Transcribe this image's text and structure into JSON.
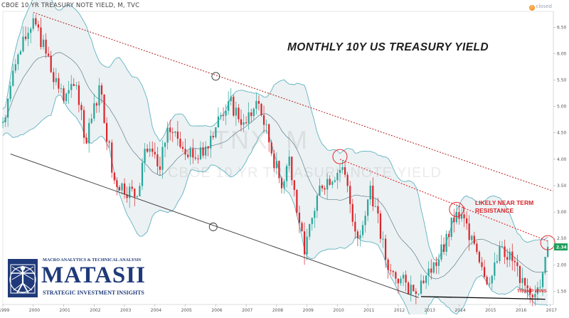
{
  "header": {
    "symbol_line": "CBOE 10 YR TREASURY NOTE YIELD, M, TVC",
    "status": "closed"
  },
  "watermark": {
    "ticker": "TNX, M",
    "name": "CBOE 10 YR TREASURY NOTE YIELD"
  },
  "annotations": {
    "resistance": "LIKELY NEAR TERM RESISTANCE",
    "trump": "TRUMP WINS"
  },
  "logo": {
    "top_line": "MACRO ANALYTICS & TECHNICAL ANALYSIS",
    "name": "MATASII",
    "tagline": "STRATEGIC INVESTMENT INSIGHTS"
  },
  "colors": {
    "up": "#26a69a",
    "down": "#d8262b",
    "band_stroke": "#5fb3c1",
    "band_fill": "#e9eef1",
    "basis": "#5f7f8c",
    "upper_channel": "#b5322f",
    "lower_channel": "#333333",
    "last_price_tag": "#1f9e5a"
  },
  "chart_data": {
    "type": "candlestick",
    "title": "MONTHLY 10Y US TREASURY YIELD",
    "x_range": [
      "1999-01",
      "2017-02"
    ],
    "ylim": [
      1.25,
      6.8
    ],
    "y_ticks": [
      "1.50",
      "2.00",
      "2.50",
      "3.00",
      "3.50",
      "4.00",
      "4.50",
      "5.00",
      "5.50",
      "6.00",
      "6.50"
    ],
    "x_ticks": [
      "1999",
      "2000",
      "2001",
      "2002",
      "2003",
      "2004",
      "2005",
      "2006",
      "2007",
      "2008",
      "2009",
      "2010",
      "2011",
      "2012",
      "2013",
      "2014",
      "2015",
      "2016",
      "2017"
    ],
    "last_value": "2.34",
    "close_anchors": [
      {
        "date": "1999-01",
        "value": 4.7
      },
      {
        "date": "1999-06",
        "value": 5.8
      },
      {
        "date": "2000-01",
        "value": 6.67
      },
      {
        "date": "2000-06",
        "value": 6.0
      },
      {
        "date": "2001-01",
        "value": 5.1
      },
      {
        "date": "2001-06",
        "value": 5.4
      },
      {
        "date": "2001-10",
        "value": 4.3
      },
      {
        "date": "2002-03",
        "value": 5.4
      },
      {
        "date": "2002-09",
        "value": 3.6
      },
      {
        "date": "2003-06",
        "value": 3.3
      },
      {
        "date": "2003-09",
        "value": 4.2
      },
      {
        "date": "2004-03",
        "value": 3.8
      },
      {
        "date": "2004-06",
        "value": 4.6
      },
      {
        "date": "2005-06",
        "value": 4.0
      },
      {
        "date": "2006-06",
        "value": 5.1
      },
      {
        "date": "2006-12",
        "value": 4.7
      },
      {
        "date": "2007-06",
        "value": 5.05
      },
      {
        "date": "2008-03",
        "value": 3.45
      },
      {
        "date": "2008-06",
        "value": 4.05
      },
      {
        "date": "2008-12",
        "value": 2.2
      },
      {
        "date": "2009-06",
        "value": 3.5
      },
      {
        "date": "2010-03",
        "value": 3.85
      },
      {
        "date": "2010-09",
        "value": 2.5
      },
      {
        "date": "2011-02",
        "value": 3.5
      },
      {
        "date": "2011-09",
        "value": 1.9
      },
      {
        "date": "2012-07",
        "value": 1.5
      },
      {
        "date": "2013-05",
        "value": 2.1
      },
      {
        "date": "2013-12",
        "value": 3.0
      },
      {
        "date": "2014-06",
        "value": 2.55
      },
      {
        "date": "2015-01",
        "value": 1.65
      },
      {
        "date": "2015-06",
        "value": 2.35
      },
      {
        "date": "2016-02",
        "value": 1.75
      },
      {
        "date": "2016-07",
        "value": 1.45
      },
      {
        "date": "2016-10",
        "value": 1.85
      },
      {
        "date": "2016-12",
        "value": 2.34
      }
    ],
    "overlays": [
      "Bollinger Bands (upper, basis, lower)"
    ],
    "trend_lines": [
      {
        "name": "upper channel",
        "from": {
          "date": "2000-01",
          "value": 6.78
        },
        "to": {
          "date": "2017-02",
          "value": 3.4
        }
      },
      {
        "name": "lower channel",
        "from": {
          "date": "1999-04",
          "value": 4.1
        },
        "to": {
          "date": "2012-09",
          "value": 1.38
        }
      },
      {
        "name": "near-term resistance",
        "from": {
          "date": "2010-02",
          "value": 4.0
        },
        "to": {
          "date": "2016-12",
          "value": 2.45
        }
      },
      {
        "name": "support",
        "from": {
          "date": "2012-10",
          "value": 1.4
        },
        "to": {
          "date": "2016-11",
          "value": 1.35
        }
      }
    ],
    "highlights": [
      {
        "date": "2006-01",
        "value": 5.57
      },
      {
        "date": "2010-02",
        "value": 4.05
      },
      {
        "date": "2013-12",
        "value": 3.05
      },
      {
        "date": "2016-12",
        "value": 2.42
      },
      {
        "date": "2005-12",
        "value": 2.72
      }
    ]
  }
}
